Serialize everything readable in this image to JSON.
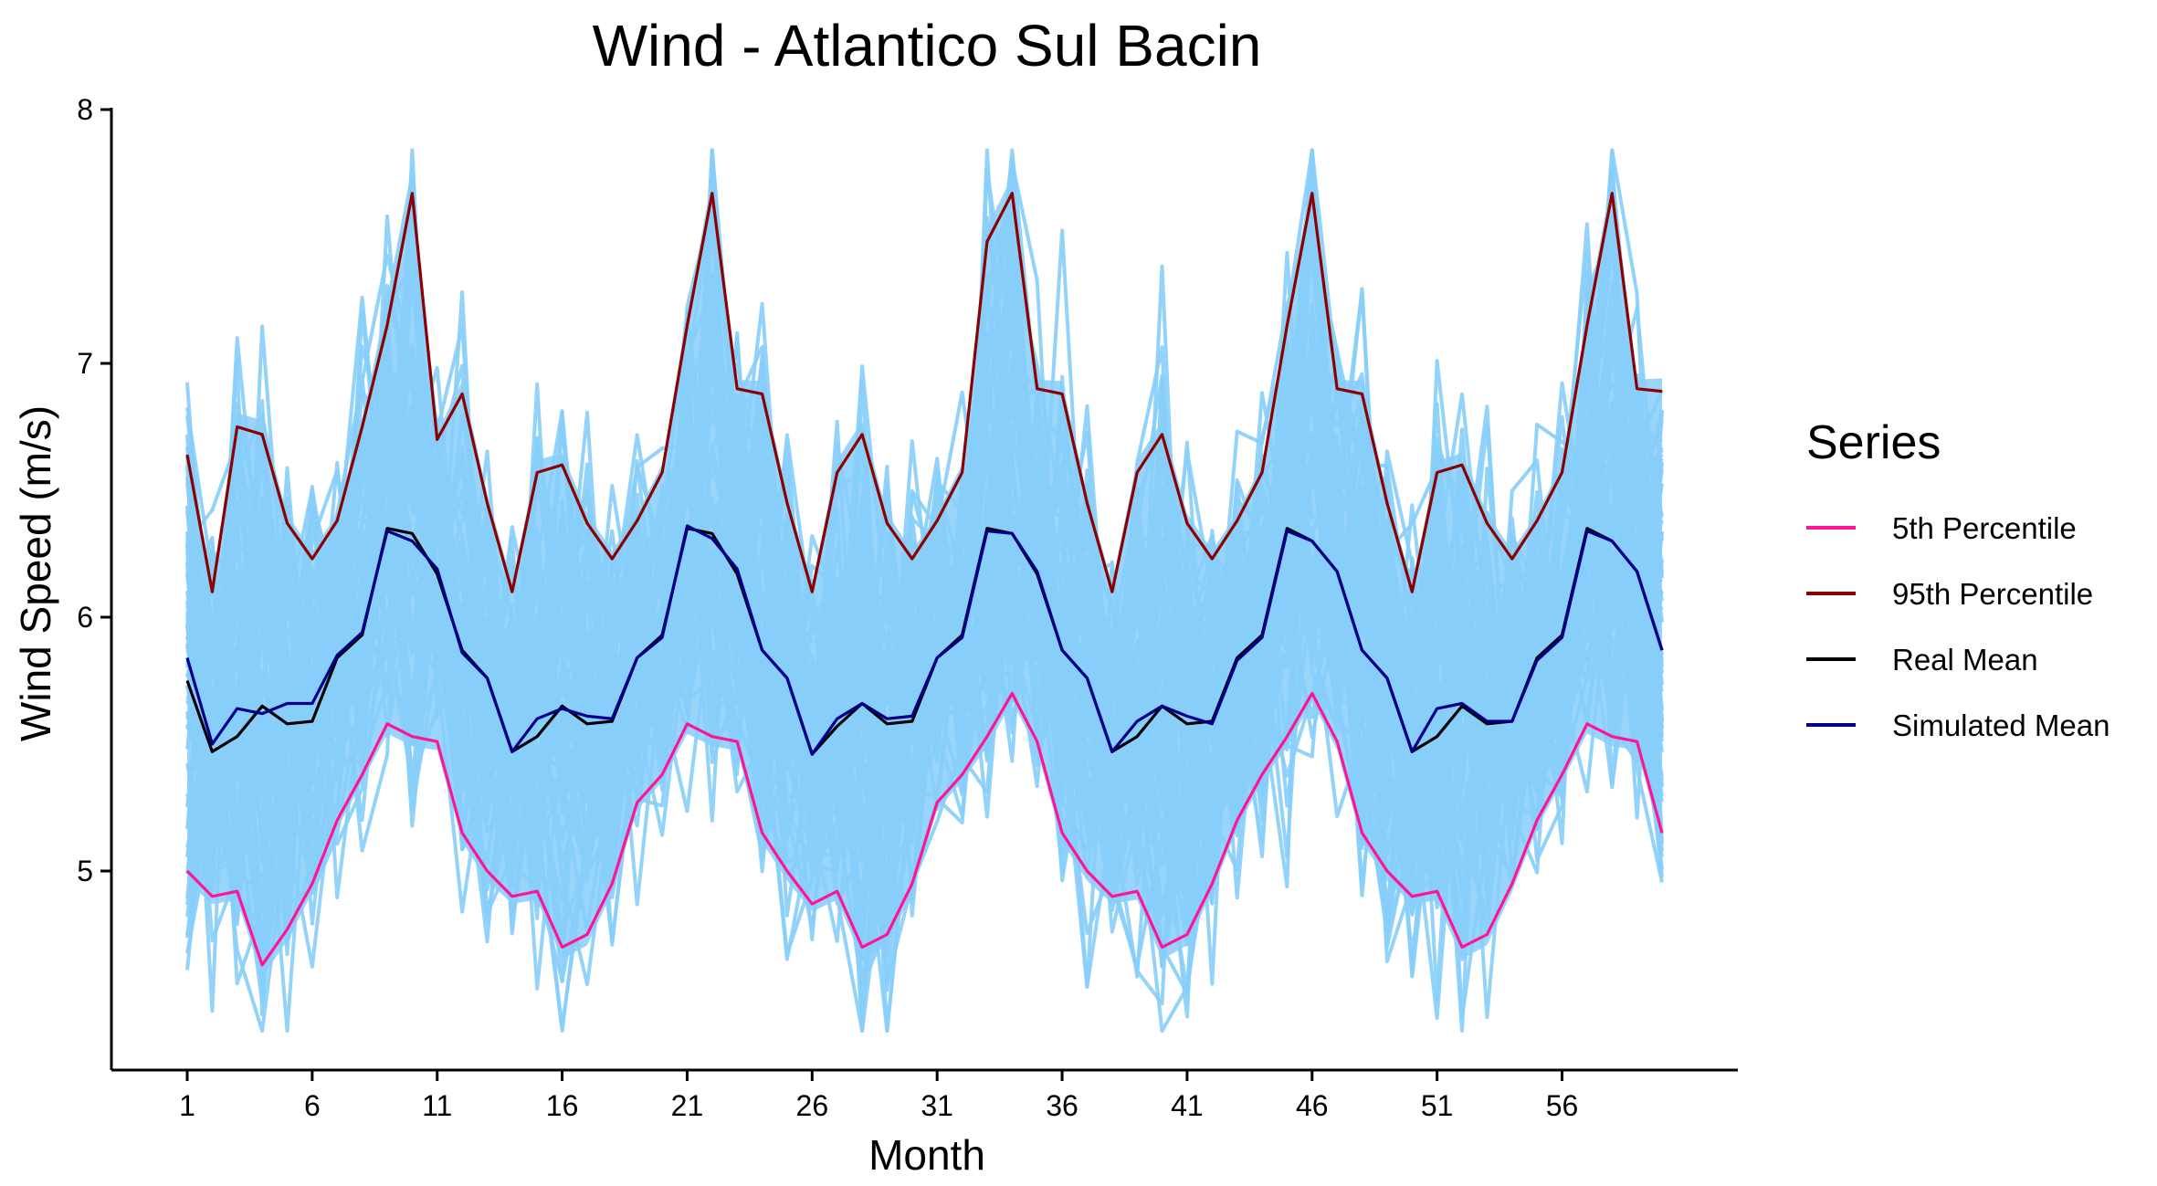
{
  "chart_data": {
    "type": "line",
    "title": "Wind - Atlantico Sul Bacin",
    "xlabel": "Month",
    "ylabel": "Wind Speed (m/s)",
    "xlim": [
      1,
      60
    ],
    "ylim": [
      4.3,
      8
    ],
    "x_ticks": [
      1,
      6,
      11,
      16,
      21,
      26,
      31,
      36,
      41,
      46,
      51,
      56
    ],
    "y_ticks": [
      5,
      6,
      7,
      8
    ],
    "grid": false,
    "legend": {
      "title": "Series",
      "position": "right"
    },
    "x": [
      1,
      2,
      3,
      4,
      5,
      6,
      7,
      8,
      9,
      10,
      11,
      12,
      13,
      14,
      15,
      16,
      17,
      18,
      19,
      20,
      21,
      22,
      23,
      24,
      25,
      26,
      27,
      28,
      29,
      30,
      31,
      32,
      33,
      34,
      35,
      36,
      37,
      38,
      39,
      40,
      41,
      42,
      43,
      44,
      45,
      46,
      47,
      48,
      49,
      50,
      51,
      52,
      53,
      54,
      55,
      56,
      57,
      58,
      59,
      60
    ],
    "series": [
      {
        "name": "5th Percentile",
        "color": "#ff1493",
        "values": [
          5.0,
          4.9,
          4.92,
          4.63,
          4.77,
          4.95,
          5.2,
          5.38,
          5.58,
          5.53,
          5.51,
          5.15,
          5.0,
          4.9,
          4.92,
          4.7,
          4.75,
          4.95,
          5.27,
          5.38,
          5.58,
          5.53,
          5.51,
          5.15,
          5.0,
          4.87,
          4.92,
          4.7,
          4.75,
          4.95,
          5.27,
          5.38,
          5.53,
          5.7,
          5.51,
          5.15,
          5.0,
          4.9,
          4.92,
          4.7,
          4.75,
          4.95,
          5.2,
          5.38,
          5.53,
          5.7,
          5.51,
          5.15,
          5.0,
          4.9,
          4.92,
          4.7,
          4.75,
          4.95,
          5.2,
          5.38,
          5.58,
          5.53,
          5.51,
          5.15
        ]
      },
      {
        "name": "95th Percentile",
        "color": "#8b0000",
        "values": [
          6.64,
          6.1,
          6.75,
          6.72,
          6.37,
          6.23,
          6.38,
          6.75,
          7.15,
          7.67,
          6.7,
          6.88,
          6.45,
          6.1,
          6.57,
          6.6,
          6.37,
          6.23,
          6.38,
          6.57,
          7.15,
          7.67,
          6.9,
          6.88,
          6.45,
          6.1,
          6.57,
          6.72,
          6.37,
          6.23,
          6.38,
          6.57,
          7.48,
          7.67,
          6.9,
          6.88,
          6.45,
          6.1,
          6.57,
          6.72,
          6.37,
          6.23,
          6.38,
          6.57,
          7.15,
          7.67,
          6.9,
          6.88,
          6.45,
          6.1,
          6.57,
          6.6,
          6.37,
          6.23,
          6.38,
          6.57,
          7.15,
          7.67,
          6.9,
          6.89
        ]
      },
      {
        "name": "Real Mean",
        "color": "#000000",
        "values": [
          5.75,
          5.47,
          5.53,
          5.65,
          5.58,
          5.59,
          5.84,
          5.93,
          6.35,
          6.33,
          6.17,
          5.87,
          5.76,
          5.47,
          5.53,
          5.65,
          5.58,
          5.59,
          5.84,
          5.93,
          6.35,
          6.33,
          6.17,
          5.87,
          5.76,
          5.46,
          5.57,
          5.66,
          5.58,
          5.59,
          5.84,
          5.93,
          6.35,
          6.33,
          6.17,
          5.87,
          5.76,
          5.47,
          5.53,
          5.65,
          5.58,
          5.59,
          5.84,
          5.93,
          6.35,
          6.3,
          6.18,
          5.87,
          5.76,
          5.47,
          5.53,
          5.65,
          5.58,
          5.59,
          5.84,
          5.93,
          6.35,
          6.3,
          6.18,
          5.87
        ]
      },
      {
        "name": "Simulated Mean",
        "color": "#00008b",
        "values": [
          5.84,
          5.5,
          5.64,
          5.62,
          5.66,
          5.66,
          5.85,
          5.94,
          6.34,
          6.3,
          6.19,
          5.86,
          5.76,
          5.47,
          5.6,
          5.64,
          5.61,
          5.6,
          5.84,
          5.92,
          6.36,
          6.31,
          6.19,
          5.87,
          5.76,
          5.46,
          5.6,
          5.66,
          5.6,
          5.61,
          5.84,
          5.92,
          6.34,
          6.33,
          6.18,
          5.87,
          5.76,
          5.47,
          5.59,
          5.65,
          5.61,
          5.58,
          5.83,
          5.92,
          6.34,
          6.3,
          6.18,
          5.87,
          5.76,
          5.47,
          5.64,
          5.66,
          5.59,
          5.59,
          5.83,
          5.92,
          6.34,
          6.3,
          6.18,
          5.87
        ]
      }
    ],
    "simulations": {
      "color": "#87cefa",
      "min": 4.37,
      "max": 7.84
    }
  }
}
